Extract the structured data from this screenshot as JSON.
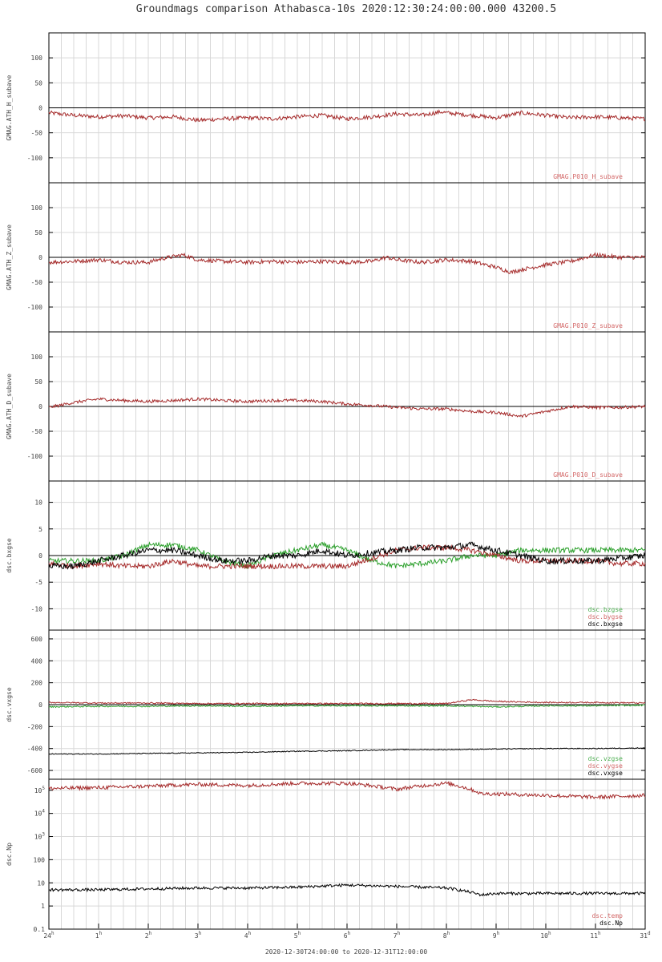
{
  "title": "Groundmags comparison Athabasca-10s 2020:12:30:24:00:00.000 43200.5",
  "x_axis": {
    "ticks": [
      {
        "v": 0,
        "main": "24",
        "sup": "h"
      },
      {
        "v": 1,
        "main": "1",
        "sup": "h"
      },
      {
        "v": 2,
        "main": "2",
        "sup": "h"
      },
      {
        "v": 3,
        "main": "3",
        "sup": "h"
      },
      {
        "v": 4,
        "main": "4",
        "sup": "h"
      },
      {
        "v": 5,
        "main": "5",
        "sup": "h"
      },
      {
        "v": 6,
        "main": "6",
        "sup": "h"
      },
      {
        "v": 7,
        "main": "7",
        "sup": "h"
      },
      {
        "v": 8,
        "main": "8",
        "sup": "h"
      },
      {
        "v": 9,
        "main": "9",
        "sup": "h"
      },
      {
        "v": 10,
        "main": "10",
        "sup": "h"
      },
      {
        "v": 11,
        "main": "11",
        "sup": "h"
      },
      {
        "v": 12,
        "main": "31",
        "sup": "d"
      }
    ],
    "range_label": "2020-12-30T24:00:00 to 2020-12-31T12:00:00",
    "xlim": [
      0,
      12
    ]
  },
  "colors": {
    "red": "#a52a2a",
    "green": "#2ca02c",
    "black": "#000000",
    "legend_red": "#d46a6a"
  },
  "chart_data": [
    {
      "type": "line",
      "ylabel": "GMAG.ATH_H_subave",
      "ylim": [
        -150,
        150
      ],
      "yticks": [
        100,
        50,
        0,
        -50,
        -100
      ],
      "grid": true,
      "legend": [
        "GMAG.P010_H_subave"
      ],
      "series": [
        {
          "name": "GMAG.P010_H_subave",
          "color": "red",
          "x": [
            0,
            0.5,
            1,
            1.5,
            2,
            2.5,
            3,
            3.5,
            4,
            4.5,
            5,
            5.5,
            6,
            6.5,
            7,
            7.5,
            7.9,
            8,
            8.5,
            9,
            9.5,
            10,
            10.5,
            11,
            11.5,
            12
          ],
          "y": [
            -10,
            -15,
            -18,
            -16,
            -20,
            -18,
            -25,
            -22,
            -20,
            -22,
            -18,
            -15,
            -22,
            -18,
            -12,
            -15,
            -8,
            -10,
            -15,
            -20,
            -10,
            -15,
            -20,
            -18,
            -20,
            -22
          ],
          "noise": 4
        }
      ]
    },
    {
      "type": "line",
      "ylabel": "GMAG.ATH_Z_subave",
      "ylim": [
        -150,
        150
      ],
      "yticks": [
        100,
        50,
        0,
        -50,
        -100
      ],
      "grid": true,
      "legend": [
        "GMAG.P010_Z_subave"
      ],
      "series": [
        {
          "name": "GMAG.P010_Z_subave",
          "color": "red",
          "x": [
            0,
            0.5,
            1,
            1.5,
            2,
            2.3,
            2.7,
            3,
            3.5,
            4,
            4.5,
            5,
            5.5,
            6,
            6.5,
            6.8,
            7,
            7.5,
            8,
            8.5,
            9,
            9.3,
            9.5,
            10,
            10.5,
            11,
            11.5,
            12
          ],
          "y": [
            -10,
            -8,
            -5,
            -10,
            -10,
            -2,
            5,
            -5,
            -8,
            -10,
            -8,
            -10,
            -8,
            -10,
            -8,
            0,
            -5,
            -10,
            -5,
            -8,
            -20,
            -30,
            -25,
            -15,
            -8,
            5,
            0,
            0
          ],
          "noise": 4
        }
      ]
    },
    {
      "type": "line",
      "ylabel": "GMAG.ATH_D_subave",
      "ylim": [
        -150,
        150
      ],
      "yticks": [
        100,
        50,
        0,
        -50,
        -100
      ],
      "grid": true,
      "legend": [
        "GMAG.P010_D_subave"
      ],
      "series": [
        {
          "name": "GMAG.P010_D_subave",
          "color": "red",
          "x": [
            0,
            0.5,
            1,
            1.5,
            2,
            2.5,
            3,
            3.5,
            4,
            4.5,
            5,
            5.5,
            6,
            6.5,
            7,
            7.5,
            8,
            8.5,
            9,
            9.5,
            10,
            10.5,
            11,
            11.5,
            12
          ],
          "y": [
            -2,
            8,
            15,
            12,
            10,
            12,
            15,
            12,
            10,
            12,
            12,
            10,
            5,
            2,
            -2,
            -5,
            -5,
            -10,
            -12,
            -20,
            -10,
            0,
            -2,
            -2,
            0
          ],
          "noise": 3
        }
      ]
    },
    {
      "type": "line",
      "ylabel": "dsc.bxgse",
      "ylim": [
        -14,
        14
      ],
      "yticks": [
        10,
        5,
        0,
        -5,
        -10
      ],
      "grid": true,
      "legend": [
        "dsc.bzgse",
        "dsc.bygse",
        "dsc.bxgse"
      ],
      "series": [
        {
          "name": "dsc.bzgse",
          "color": "green",
          "x": [
            0,
            0.5,
            1,
            1.5,
            2,
            2.5,
            3,
            3.5,
            4,
            4.5,
            5,
            5.5,
            6,
            6.5,
            7,
            7.5,
            8,
            8.5,
            9,
            9.5,
            10,
            10.5,
            11,
            11.5,
            12
          ],
          "y": [
            -1,
            -1,
            -1,
            0,
            2,
            2,
            1,
            -1,
            -2,
            0,
            1,
            2,
            1,
            -1,
            -2,
            -1.5,
            -1,
            0,
            0,
            1,
            1,
            1,
            1,
            1,
            1
          ],
          "noise": 0.5
        },
        {
          "name": "dsc.bygse",
          "color": "red",
          "x": [
            0,
            0.5,
            1,
            1.5,
            2,
            2.5,
            3,
            3.5,
            4,
            4.5,
            5,
            5.5,
            6,
            6.5,
            7,
            7.5,
            8,
            8.5,
            9,
            9.5,
            10,
            10.5,
            11,
            11.5,
            12
          ],
          "y": [
            -1.5,
            -2,
            -1.5,
            -2,
            -2,
            -1,
            -2,
            -2,
            -2,
            -2,
            -2,
            -2,
            -2,
            -0.5,
            1,
            1.5,
            1.5,
            1,
            0,
            -1,
            -1,
            -1,
            -1,
            -1.5,
            -1.5
          ],
          "noise": 0.5
        },
        {
          "name": "dsc.bxgse",
          "color": "black",
          "x": [
            0,
            0.5,
            1,
            1.5,
            2,
            2.5,
            3,
            3.5,
            4,
            4.5,
            5,
            5.5,
            6,
            6.5,
            7,
            7.5,
            8,
            8.5,
            9,
            9.5,
            10,
            10.5,
            11,
            11.5,
            12
          ],
          "y": [
            -2,
            -2,
            -1,
            0,
            1,
            1,
            0,
            -1,
            -1,
            0,
            0,
            1,
            0,
            0.5,
            1,
            1.5,
            1.5,
            2,
            1,
            0,
            -1,
            -1,
            -1,
            -0.5,
            0
          ],
          "noise": 0.6
        }
      ]
    },
    {
      "type": "line",
      "ylabel": "dsc.vxgse",
      "ylim": [
        -680,
        680
      ],
      "yticks": [
        600,
        400,
        200,
        0,
        -200,
        -400,
        -600
      ],
      "grid": true,
      "legend": [
        "dsc.vzgse",
        "dsc.vygse",
        "dsc.vxgse"
      ],
      "series": [
        {
          "name": "dsc.vzgse",
          "color": "green",
          "x": [
            0,
            1,
            2,
            3,
            4,
            5,
            6,
            7,
            8,
            9,
            10,
            11,
            12
          ],
          "y": [
            -20,
            -15,
            -15,
            -10,
            -15,
            -10,
            -10,
            -10,
            -10,
            -20,
            -10,
            -10,
            -5
          ],
          "noise": 6
        },
        {
          "name": "dsc.vygse",
          "color": "red",
          "x": [
            0,
            1,
            2,
            3,
            4,
            5,
            6,
            7,
            8,
            8.5,
            9,
            10,
            11,
            12
          ],
          "y": [
            20,
            15,
            15,
            10,
            10,
            10,
            10,
            10,
            10,
            45,
            30,
            20,
            20,
            15
          ],
          "noise": 6
        },
        {
          "name": "dsc.vxgse",
          "color": "black",
          "x": [
            0,
            1,
            2,
            3,
            4,
            5,
            6,
            7,
            8,
            9,
            10,
            11,
            12
          ],
          "y": [
            -450,
            -450,
            -445,
            -440,
            -435,
            -425,
            -420,
            -410,
            -410,
            -405,
            -400,
            -400,
            -395
          ],
          "noise": 4
        }
      ]
    },
    {
      "type": "line",
      "ylabel": "dsc.Np",
      "log": true,
      "ylim": [
        0.1,
        300000
      ],
      "yticks": [
        "10^5",
        "10^4",
        "10^3",
        "100",
        "10",
        "1",
        "0.1"
      ],
      "grid": true,
      "legend": [
        "dsc.temp",
        "dsc.Np"
      ],
      "series": [
        {
          "name": "dsc.temp",
          "color": "red",
          "x": [
            0,
            1,
            2,
            3,
            4,
            5,
            6,
            7,
            8,
            8.7,
            9,
            10,
            11,
            12
          ],
          "y": [
            120000,
            130000,
            150000,
            180000,
            160000,
            200000,
            200000,
            110000,
            200000,
            70000,
            70000,
            60000,
            50000,
            60000
          ],
          "noise_log": 0.08
        },
        {
          "name": "dsc.Np",
          "color": "black",
          "x": [
            0,
            1,
            2,
            3,
            4,
            5,
            6,
            7,
            8,
            8.7,
            9,
            10,
            11,
            12
          ],
          "y": [
            5,
            5,
            5.5,
            6,
            6,
            6.5,
            8,
            7,
            6,
            3,
            3.5,
            3.5,
            3.5,
            3.5
          ],
          "noise_log": 0.06
        }
      ]
    }
  ]
}
